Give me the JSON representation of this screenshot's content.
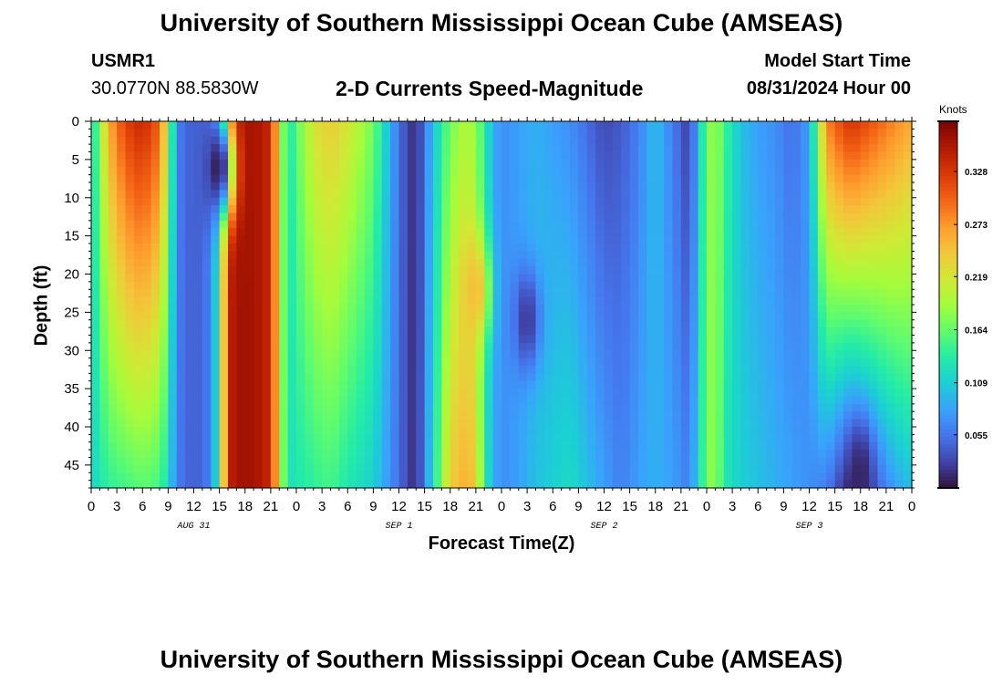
{
  "header": {
    "title": "University of Southern Mississippi Ocean Cube (AMSEAS)",
    "station": "USMR1",
    "coordinates": "30.0770N  88.5830W",
    "subtitle": "2-D Currents Speed-Magnitude",
    "model_start_label": "Model Start Time",
    "model_start_value": "08/31/2024 Hour 00"
  },
  "footer": {
    "title": "University of Southern Mississippi Ocean Cube (AMSEAS)"
  },
  "chart_data": {
    "type": "heatmap",
    "title": "2-D Currents Speed-Magnitude",
    "xlabel": "Forecast Time(Z)",
    "ylabel": "Depth (ft)",
    "x_unit": "forecast hour",
    "xlim": [
      0,
      96
    ],
    "ylim": [
      0,
      48
    ],
    "x_ticks": [
      0,
      3,
      6,
      9,
      12,
      15,
      18,
      21,
      24,
      27,
      30,
      33,
      36,
      39,
      42,
      45,
      48,
      51,
      54,
      57,
      60,
      63,
      66,
      69,
      72,
      75,
      78,
      81,
      84,
      87,
      90,
      93,
      96
    ],
    "x_tick_labels": [
      "0",
      "3",
      "6",
      "9",
      "12",
      "15",
      "18",
      "21",
      "0",
      "3",
      "6",
      "9",
      "12",
      "15",
      "18",
      "21",
      "0",
      "3",
      "6",
      "9",
      "12",
      "15",
      "18",
      "21",
      "0",
      "3",
      "6",
      "9",
      "12",
      "15",
      "18",
      "21",
      "0"
    ],
    "date_labels": [
      {
        "hour": 12,
        "text": "AUG 31"
      },
      {
        "hour": 36,
        "text": "SEP 1"
      },
      {
        "hour": 60,
        "text": "SEP 2"
      },
      {
        "hour": 84,
        "text": "SEP 3"
      }
    ],
    "y_ticks": [
      0,
      5,
      10,
      15,
      20,
      25,
      30,
      35,
      40,
      45
    ],
    "y_tick_labels": [
      "0",
      "5",
      "10",
      "15",
      "20",
      "25",
      "30",
      "35",
      "40",
      "45"
    ],
    "colorbar": {
      "label": "Knots",
      "min": 0.0,
      "max": 0.38,
      "ticks": [
        0.055,
        0.109,
        0.164,
        0.219,
        0.273,
        0.328
      ],
      "tick_labels": [
        "0.055",
        "0.109",
        "0.164",
        "0.219",
        "0.273",
        "0.328"
      ],
      "colors": [
        "#30123b",
        "#4145ab",
        "#4675ed",
        "#39a2fc",
        "#1bcfd4",
        "#24eca6",
        "#61fc6c",
        "#a4fc3b",
        "#d1e834",
        "#f3c63a",
        "#fe9b2d",
        "#f36315",
        "#d93806",
        "#b11901",
        "#7a0402"
      ]
    },
    "series_note": "speed (knots) as a function of forecast hour and depth; profiles below are values at depth 0 ft and 47 ft",
    "surface_profile": {
      "hours": [
        0,
        1,
        2,
        4,
        6,
        8,
        9,
        10,
        12,
        14,
        15,
        16,
        17,
        19,
        21,
        22,
        23,
        24,
        26,
        28,
        30,
        33,
        36,
        38,
        40,
        42,
        44,
        45,
        46,
        47,
        48,
        50,
        52,
        54,
        56,
        58,
        60,
        62,
        64,
        66,
        68,
        70,
        72,
        73,
        74,
        76,
        78,
        80,
        82,
        84,
        86,
        88,
        89,
        90,
        92,
        94,
        96
      ],
      "speed": [
        0.11,
        0.18,
        0.26,
        0.32,
        0.34,
        0.3,
        0.2,
        0.06,
        0.04,
        0.06,
        0.15,
        0.34,
        0.36,
        0.36,
        0.34,
        0.22,
        0.12,
        0.16,
        0.22,
        0.24,
        0.22,
        0.17,
        0.05,
        0.01,
        0.1,
        0.17,
        0.2,
        0.18,
        0.14,
        0.09,
        0.07,
        0.08,
        0.09,
        0.08,
        0.07,
        0.05,
        0.03,
        0.04,
        0.06,
        0.1,
        0.06,
        0.02,
        0.17,
        0.19,
        0.15,
        0.1,
        0.08,
        0.07,
        0.05,
        0.08,
        0.28,
        0.32,
        0.33,
        0.32,
        0.3,
        0.28,
        0.26
      ]
    },
    "bottom_profile": {
      "hours": [
        0,
        1,
        2,
        4,
        6,
        8,
        9,
        10,
        12,
        14,
        15,
        16,
        17,
        19,
        21,
        22,
        23,
        24,
        26,
        28,
        30,
        33,
        36,
        38,
        40,
        42,
        44,
        45,
        46,
        47,
        48,
        50,
        52,
        54,
        56,
        58,
        60,
        62,
        64,
        66,
        68,
        70,
        72,
        73,
        74,
        76,
        78,
        80,
        82,
        84,
        86,
        88,
        89,
        90,
        92,
        94,
        96
      ],
      "speed": [
        0.11,
        0.13,
        0.14,
        0.15,
        0.16,
        0.15,
        0.12,
        0.06,
        0.04,
        0.06,
        0.15,
        0.34,
        0.36,
        0.36,
        0.34,
        0.22,
        0.12,
        0.13,
        0.14,
        0.15,
        0.13,
        0.11,
        0.05,
        0.01,
        0.12,
        0.24,
        0.26,
        0.24,
        0.14,
        0.09,
        0.07,
        0.08,
        0.1,
        0.11,
        0.12,
        0.1,
        0.08,
        0.06,
        0.08,
        0.09,
        0.08,
        0.06,
        0.17,
        0.19,
        0.13,
        0.11,
        0.1,
        0.09,
        0.08,
        0.07,
        0.06,
        0.02,
        0.01,
        0.02,
        0.05,
        0.08,
        0.1
      ]
    },
    "features": [
      {
        "type": "min",
        "hour": 15,
        "depth": 6,
        "speed": 0.0
      },
      {
        "type": "min",
        "hour": 51,
        "depth": 26,
        "speed": 0.02
      },
      {
        "type": "max",
        "hour": 45,
        "depth": 22,
        "speed": 0.25
      },
      {
        "type": "min",
        "hour": 90,
        "depth": 46,
        "speed": 0.01
      }
    ]
  }
}
